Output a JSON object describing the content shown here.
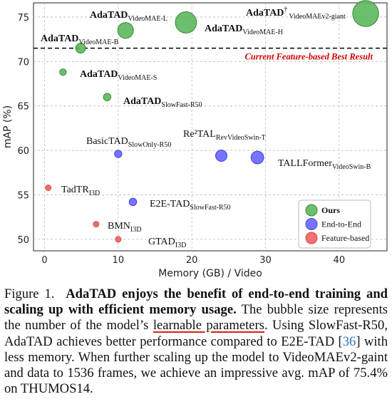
{
  "chart_data": {
    "type": "scatter",
    "xlabel": "Memory (GB) / Video",
    "ylabel": "mAP (%)",
    "xlim": [
      -1.5,
      46.5
    ],
    "ylim": [
      48.7,
      76.6
    ],
    "xticks": [
      0,
      10,
      20,
      30,
      40
    ],
    "yticks": [
      50,
      55,
      60,
      65,
      70,
      75
    ],
    "grid": true,
    "legend_position": "lower-right",
    "reference_line": {
      "y": 71.5,
      "label": "Current Feature-based Best Result",
      "color": "#d10000"
    },
    "groups": [
      {
        "key": "ours",
        "name": "Ours",
        "color": "#5cb85c",
        "edge": "#3a8a3a"
      },
      {
        "key": "e2e",
        "name": "End-to-End",
        "color": "#6666ff",
        "edge": "#4444dd"
      },
      {
        "key": "feat",
        "name": "Feature-based",
        "color": "#f06060",
        "edge": "#d84848"
      }
    ],
    "points": [
      {
        "name": "AdaTAD",
        "sub": "VideoMAE-S",
        "group": "ours",
        "x": 2.5,
        "y": 68.8,
        "size": 22
      },
      {
        "name": "AdaTAD",
        "sub": "VideoMAE-B",
        "group": "ours",
        "x": 4.9,
        "y": 71.5,
        "size": 87
      },
      {
        "name": "AdaTAD",
        "sub": "VideoMAE-L",
        "group": "ours",
        "x": 11.0,
        "y": 73.5,
        "size": 305
      },
      {
        "name": "AdaTAD",
        "sub": "VideoMAE-H",
        "group": "ours",
        "x": 19.2,
        "y": 74.4,
        "size": 633
      },
      {
        "name": "AdaTAD",
        "sup": "†",
        "sub": "VideoMAEv2-giant",
        "group": "ours",
        "x": 43.6,
        "y": 75.4,
        "size": 1012
      },
      {
        "name": "AdaTAD",
        "sub": "SlowFast-R50",
        "group": "ours",
        "x": 8.5,
        "y": 66.0,
        "size": 34
      },
      {
        "name": "BasicTAD",
        "sub": "SlowOnly-R50",
        "group": "e2e",
        "x": 10.0,
        "y": 59.6,
        "size": 33
      },
      {
        "name": "Re²TAL",
        "sub": "RevVideoSwin-T",
        "group": "e2e",
        "x": 24.0,
        "y": 59.4,
        "size": 130
      },
      {
        "name": "TALLFormer",
        "sub": "VideoSwin-B",
        "group": "e2e",
        "x": 28.9,
        "y": 59.2,
        "size": 175
      },
      {
        "name": "E2E-TAD",
        "sub": "SlowFast-R50",
        "group": "e2e",
        "x": 12.0,
        "y": 54.2,
        "size": 34
      },
      {
        "name": "TadTR",
        "sub": "I3D",
        "group": "feat",
        "x": 0.5,
        "y": 55.8,
        "size": 7
      },
      {
        "name": "BMN",
        "sub": "I3D",
        "group": "feat",
        "x": 7.0,
        "y": 51.7,
        "size": 1
      },
      {
        "name": "GTAD",
        "sub": "I3D",
        "group": "feat",
        "x": 10.0,
        "y": 50.0,
        "size": 4
      }
    ]
  },
  "caption": {
    "figure_label": "Figure 1.",
    "bold_title": "AdaTAD enjoys the benefit of end-to-end training and scaling up with efficient memory usage.",
    "text_1": "The bubble size represents the number of the model’s",
    "underlined": "learnable parameters",
    "text_2": ". Using SlowFast-R50, AdaTAD achieves better performance compared to E2E-TAD [",
    "citation": "36",
    "text_3": "] with less memory. When further scaling up the model to VideoMAEv2-gaint and data to 1536 frames, we achieve an impressive avg. mAP of 75.4% on THUMOS14."
  }
}
